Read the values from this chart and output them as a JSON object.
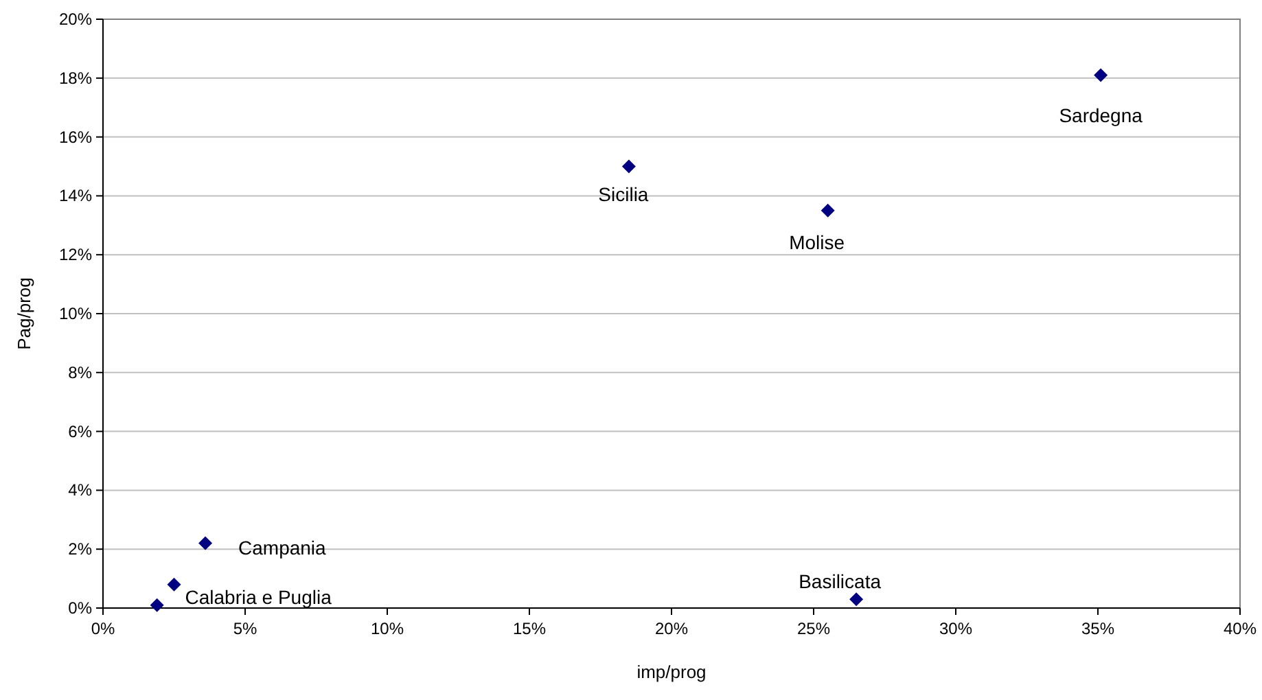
{
  "chart_data": {
    "type": "scatter",
    "xlabel": "imp/prog",
    "ylabel": "Pag/prog",
    "x": [
      35.1,
      18.5,
      25.5,
      26.5,
      3.6,
      2.5,
      1.9
    ],
    "series": [
      {
        "color": "#000080",
        "values": [
          18.1,
          15.0,
          13.5,
          0.3,
          2.2,
          0.8,
          0.1
        ]
      }
    ],
    "marker": "diamond",
    "grid": "y",
    "xlim": [
      0,
      40
    ],
    "ylim": [
      0,
      20
    ],
    "xticks": [
      {
        "value": 0,
        "label": "0%"
      },
      {
        "value": 5,
        "label": "5%"
      },
      {
        "value": 10,
        "label": "10%"
      },
      {
        "value": 15,
        "label": "15%"
      },
      {
        "value": 20,
        "label": "20%"
      },
      {
        "value": 25,
        "label": "25%"
      },
      {
        "value": 30,
        "label": "30%"
      },
      {
        "value": 35,
        "label": "35%"
      },
      {
        "value": 40,
        "label": "40%"
      }
    ],
    "yticks": [
      {
        "value": 0,
        "label": "0%"
      },
      {
        "value": 2,
        "label": "2%"
      },
      {
        "value": 4,
        "label": "4%"
      },
      {
        "value": 6,
        "label": "6%"
      },
      {
        "value": 8,
        "label": "8%"
      },
      {
        "value": 10,
        "label": "10%"
      },
      {
        "value": 12,
        "label": "12%"
      },
      {
        "value": 14,
        "label": "14%"
      },
      {
        "value": 16,
        "label": "16%"
      },
      {
        "value": 18,
        "label": "18%"
      },
      {
        "value": 20,
        "label": "20%"
      }
    ],
    "annotations": [
      {
        "text": "Sardegna",
        "x": 35.1,
        "y": 18.1
      },
      {
        "text": "Sicilia",
        "x": 18.5,
        "y": 15.0
      },
      {
        "text": "Molise",
        "x": 25.5,
        "y": 13.5
      },
      {
        "text": "Basilicata",
        "x": 26.5,
        "y": 0.3
      },
      {
        "text": "Campania",
        "x": 3.6,
        "y": 2.2
      },
      {
        "text": "Calabria e Puglia",
        "x": 2.5,
        "y": 0.8
      }
    ]
  }
}
